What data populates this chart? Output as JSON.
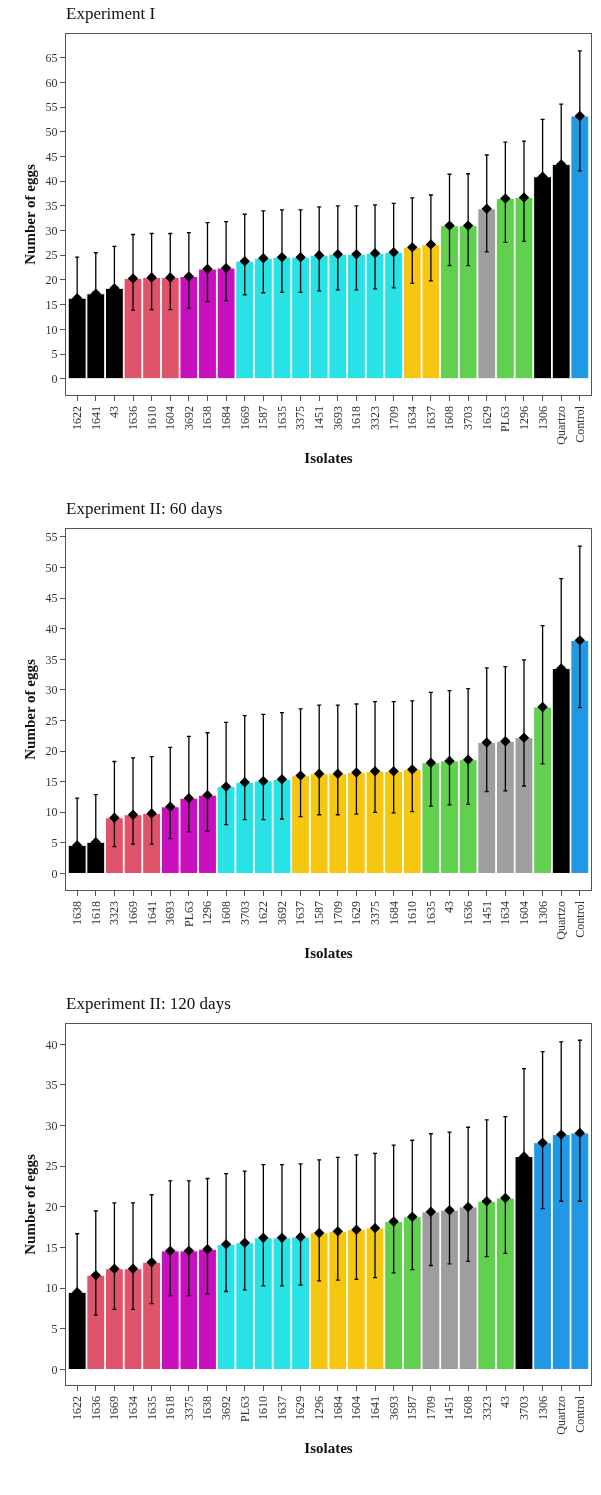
{
  "chart_data": [
    {
      "type": "bar",
      "title": "Experiment I",
      "xlabel": "Isolates",
      "ylabel": "Number of eggs",
      "grid": false,
      "categories": [
        "1622",
        "1641",
        "43",
        "1636",
        "1610",
        "1604",
        "3692",
        "1638",
        "1684",
        "1669",
        "1587",
        "1635",
        "3375",
        "1451",
        "3693",
        "1618",
        "3323",
        "1709",
        "1634",
        "1637",
        "1608",
        "3703",
        "1629",
        "PL63",
        "1296",
        "1306",
        "Quartzo",
        "Control"
      ],
      "series": [
        {
          "type": "bar",
          "values": [
            16.3,
            17.2,
            18.3,
            20.3,
            20.5,
            20.5,
            20.7,
            22.2,
            22.4,
            23.8,
            24.4,
            24.6,
            24.6,
            25.0,
            25.2,
            25.2,
            25.4,
            25.6,
            26.6,
            27.2,
            31.0,
            31.0,
            34.4,
            36.5,
            36.7,
            40.9,
            43.4,
            53.2
          ],
          "errors": [
            [
              16.3,
              24.6
            ],
            [
              17.2,
              25.5
            ],
            [
              18.3,
              26.8
            ],
            [
              13.9,
              29.2
            ],
            [
              14.0,
              29.4
            ],
            [
              14.0,
              29.4
            ],
            [
              14.3,
              29.6
            ],
            [
              15.6,
              31.6
            ],
            [
              15.8,
              31.8
            ],
            [
              17.0,
              33.3
            ],
            [
              17.4,
              34.0
            ],
            [
              17.5,
              34.2
            ],
            [
              17.5,
              34.2
            ],
            [
              17.8,
              34.8
            ],
            [
              18.0,
              35.0
            ],
            [
              18.0,
              35.0
            ],
            [
              18.2,
              35.2
            ],
            [
              18.4,
              35.5
            ],
            [
              19.3,
              36.6
            ],
            [
              19.8,
              37.2
            ],
            [
              22.9,
              41.4
            ],
            [
              22.9,
              41.5
            ],
            [
              25.7,
              45.3
            ],
            [
              27.6,
              47.9
            ],
            [
              27.8,
              48.1
            ],
            [
              40.9,
              52.5
            ],
            [
              43.4,
              55.6
            ],
            [
              42.1,
              66.4
            ]
          ],
          "colors": [
            "#000000",
            "#000000",
            "#000000",
            "#df536b",
            "#df536b",
            "#df536b",
            "#c80fbe",
            "#c80fbe",
            "#c80fbe",
            "#28e2e5",
            "#28e2e5",
            "#28e2e5",
            "#28e2e5",
            "#28e2e5",
            "#28e2e5",
            "#28e2e5",
            "#28e2e5",
            "#28e2e5",
            "#f5c710",
            "#f5c710",
            "#61d04f",
            "#61d04f",
            "#9e9e9e",
            "#61d04f",
            "#61d04f",
            "#000000",
            "#000000",
            "#2297e6"
          ]
        },
        {
          "type": "scatter",
          "marker": "diamond",
          "color": "#000000",
          "values": [
            16.3,
            17.2,
            18.3,
            20.3,
            20.5,
            20.5,
            20.7,
            22.2,
            22.4,
            23.8,
            24.4,
            24.6,
            24.6,
            25.0,
            25.2,
            25.2,
            25.4,
            25.6,
            26.6,
            27.2,
            31.0,
            31.0,
            34.4,
            36.5,
            36.7,
            40.9,
            43.4,
            53.2
          ]
        }
      ],
      "ylim": [
        -3.3,
        69.8
      ],
      "yticks": [
        0,
        5,
        10,
        15,
        20,
        25,
        30,
        35,
        40,
        45,
        50,
        55,
        60,
        65
      ]
    },
    {
      "type": "bar",
      "title": "Experiment II: 60 days",
      "xlabel": "Isolates",
      "ylabel": "Number of eggs",
      "grid": false,
      "categories": [
        "1638",
        "1618",
        "3323",
        "1669",
        "1641",
        "3693",
        "PL63",
        "1296",
        "1608",
        "3703",
        "1622",
        "3692",
        "1637",
        "1587",
        "1709",
        "1629",
        "3375",
        "1684",
        "1610",
        "1635",
        "43",
        "1636",
        "1451",
        "1634",
        "1604",
        "1306",
        "Quartzo",
        "Control"
      ],
      "series": [
        {
          "type": "bar",
          "values": [
            4.6,
            5.1,
            9.1,
            9.6,
            9.8,
            10.9,
            12.3,
            12.8,
            14.2,
            14.9,
            15.1,
            15.4,
            16.0,
            16.3,
            16.3,
            16.5,
            16.7,
            16.7,
            17.0,
            18.1,
            18.4,
            18.6,
            21.4,
            21.6,
            22.2,
            27.2,
            33.5,
            38.1
          ],
          "errors": [
            [
              4.6,
              12.3
            ],
            [
              5.1,
              12.9
            ],
            [
              4.4,
              18.3
            ],
            [
              4.8,
              18.9
            ],
            [
              4.8,
              19.1
            ],
            [
              5.7,
              20.6
            ],
            [
              6.8,
              22.4
            ],
            [
              6.9,
              23.0
            ],
            [
              8.0,
              24.7
            ],
            [
              8.8,
              25.8
            ],
            [
              8.8,
              26.0
            ],
            [
              8.9,
              26.3
            ],
            [
              9.3,
              26.9
            ],
            [
              9.6,
              27.5
            ],
            [
              9.6,
              27.5
            ],
            [
              9.7,
              27.7
            ],
            [
              10.0,
              28.1
            ],
            [
              9.9,
              28.1
            ],
            [
              10.1,
              28.2
            ],
            [
              11.0,
              29.6
            ],
            [
              11.2,
              29.9
            ],
            [
              11.3,
              30.2
            ],
            [
              13.4,
              33.6
            ],
            [
              13.5,
              33.8
            ],
            [
              14.3,
              34.9
            ],
            [
              17.9,
              40.5
            ],
            [
              33.5,
              48.2
            ],
            [
              27.1,
              53.5
            ]
          ],
          "colors": [
            "#000000",
            "#000000",
            "#df536b",
            "#df536b",
            "#df536b",
            "#c80fbe",
            "#c80fbe",
            "#c80fbe",
            "#28e2e5",
            "#28e2e5",
            "#28e2e5",
            "#28e2e5",
            "#f5c710",
            "#f5c710",
            "#f5c710",
            "#f5c710",
            "#f5c710",
            "#f5c710",
            "#f5c710",
            "#61d04f",
            "#61d04f",
            "#61d04f",
            "#9e9e9e",
            "#9e9e9e",
            "#9e9e9e",
            "#61d04f",
            "#000000",
            "#2297e6"
          ]
        },
        {
          "type": "scatter",
          "marker": "diamond",
          "color": "#000000",
          "values": [
            4.6,
            5.1,
            9.1,
            9.6,
            9.8,
            10.9,
            12.3,
            12.8,
            14.2,
            14.9,
            15.1,
            15.4,
            16.0,
            16.3,
            16.3,
            16.5,
            16.7,
            16.7,
            17.0,
            18.1,
            18.4,
            18.6,
            21.4,
            21.6,
            22.2,
            27.2,
            33.5,
            38.1
          ]
        }
      ],
      "ylim": [
        -2.7,
        56.3
      ],
      "yticks": [
        0,
        5,
        10,
        15,
        20,
        25,
        30,
        35,
        40,
        45,
        50,
        55
      ]
    },
    {
      "type": "bar",
      "title": "Experiment II: 120 days",
      "xlabel": "Isolates",
      "ylabel": "Number of eggs",
      "grid": false,
      "categories": [
        "1622",
        "1636",
        "1669",
        "1634",
        "1635",
        "1618",
        "3375",
        "1638",
        "3692",
        "PL63",
        "1610",
        "1637",
        "1629",
        "1296",
        "1684",
        "1604",
        "1641",
        "3693",
        "1587",
        "1709",
        "1451",
        "1608",
        "3323",
        "43",
        "3703",
        "1306",
        "Quartzo",
        "Control"
      ],
      "series": [
        {
          "type": "bar",
          "values": [
            9.5,
            11.6,
            12.4,
            12.4,
            13.2,
            14.6,
            14.6,
            14.8,
            15.4,
            15.6,
            16.2,
            16.2,
            16.3,
            16.8,
            17.0,
            17.2,
            17.4,
            18.2,
            18.8,
            19.4,
            19.6,
            20.0,
            20.7,
            21.1,
            26.2,
            27.9,
            28.9,
            29.1
          ],
          "errors": [
            [
              9.5,
              16.7
            ],
            [
              6.7,
              19.5
            ],
            [
              7.4,
              20.5
            ],
            [
              7.4,
              20.5
            ],
            [
              8.1,
              21.5
            ],
            [
              9.1,
              23.2
            ],
            [
              9.1,
              23.2
            ],
            [
              9.3,
              23.5
            ],
            [
              9.6,
              24.1
            ],
            [
              9.8,
              24.4
            ],
            [
              10.3,
              25.2
            ],
            [
              10.3,
              25.2
            ],
            [
              10.4,
              25.3
            ],
            [
              10.9,
              25.8
            ],
            [
              11.0,
              26.1
            ],
            [
              11.1,
              26.4
            ],
            [
              11.3,
              26.6
            ],
            [
              11.9,
              27.6
            ],
            [
              12.3,
              28.2
            ],
            [
              12.8,
              29.0
            ],
            [
              13.0,
              29.2
            ],
            [
              13.3,
              29.8
            ],
            [
              13.9,
              30.7
            ],
            [
              14.3,
              31.1
            ],
            [
              26.2,
              37.0
            ],
            [
              19.8,
              39.1
            ],
            [
              20.7,
              40.3
            ],
            [
              20.7,
              40.5
            ]
          ],
          "colors": [
            "#000000",
            "#df536b",
            "#df536b",
            "#df536b",
            "#df536b",
            "#c80fbe",
            "#c80fbe",
            "#c80fbe",
            "#28e2e5",
            "#28e2e5",
            "#28e2e5",
            "#28e2e5",
            "#28e2e5",
            "#f5c710",
            "#f5c710",
            "#f5c710",
            "#f5c710",
            "#61d04f",
            "#61d04f",
            "#9e9e9e",
            "#9e9e9e",
            "#9e9e9e",
            "#61d04f",
            "#61d04f",
            "#000000",
            "#2297e6",
            "#2297e6",
            "#2297e6"
          ]
        },
        {
          "type": "scatter",
          "marker": "diamond",
          "color": "#000000",
          "values": [
            9.5,
            11.6,
            12.4,
            12.4,
            13.2,
            14.6,
            14.6,
            14.8,
            15.4,
            15.6,
            16.2,
            16.2,
            16.3,
            16.8,
            17.0,
            17.2,
            17.4,
            18.2,
            18.8,
            19.4,
            19.6,
            20.0,
            20.7,
            21.1,
            26.2,
            27.9,
            28.9,
            29.1
          ]
        }
      ],
      "ylim": [
        -1.9,
        42.5
      ],
      "yticks": [
        0,
        5,
        10,
        15,
        20,
        25,
        30,
        35,
        40
      ]
    }
  ]
}
